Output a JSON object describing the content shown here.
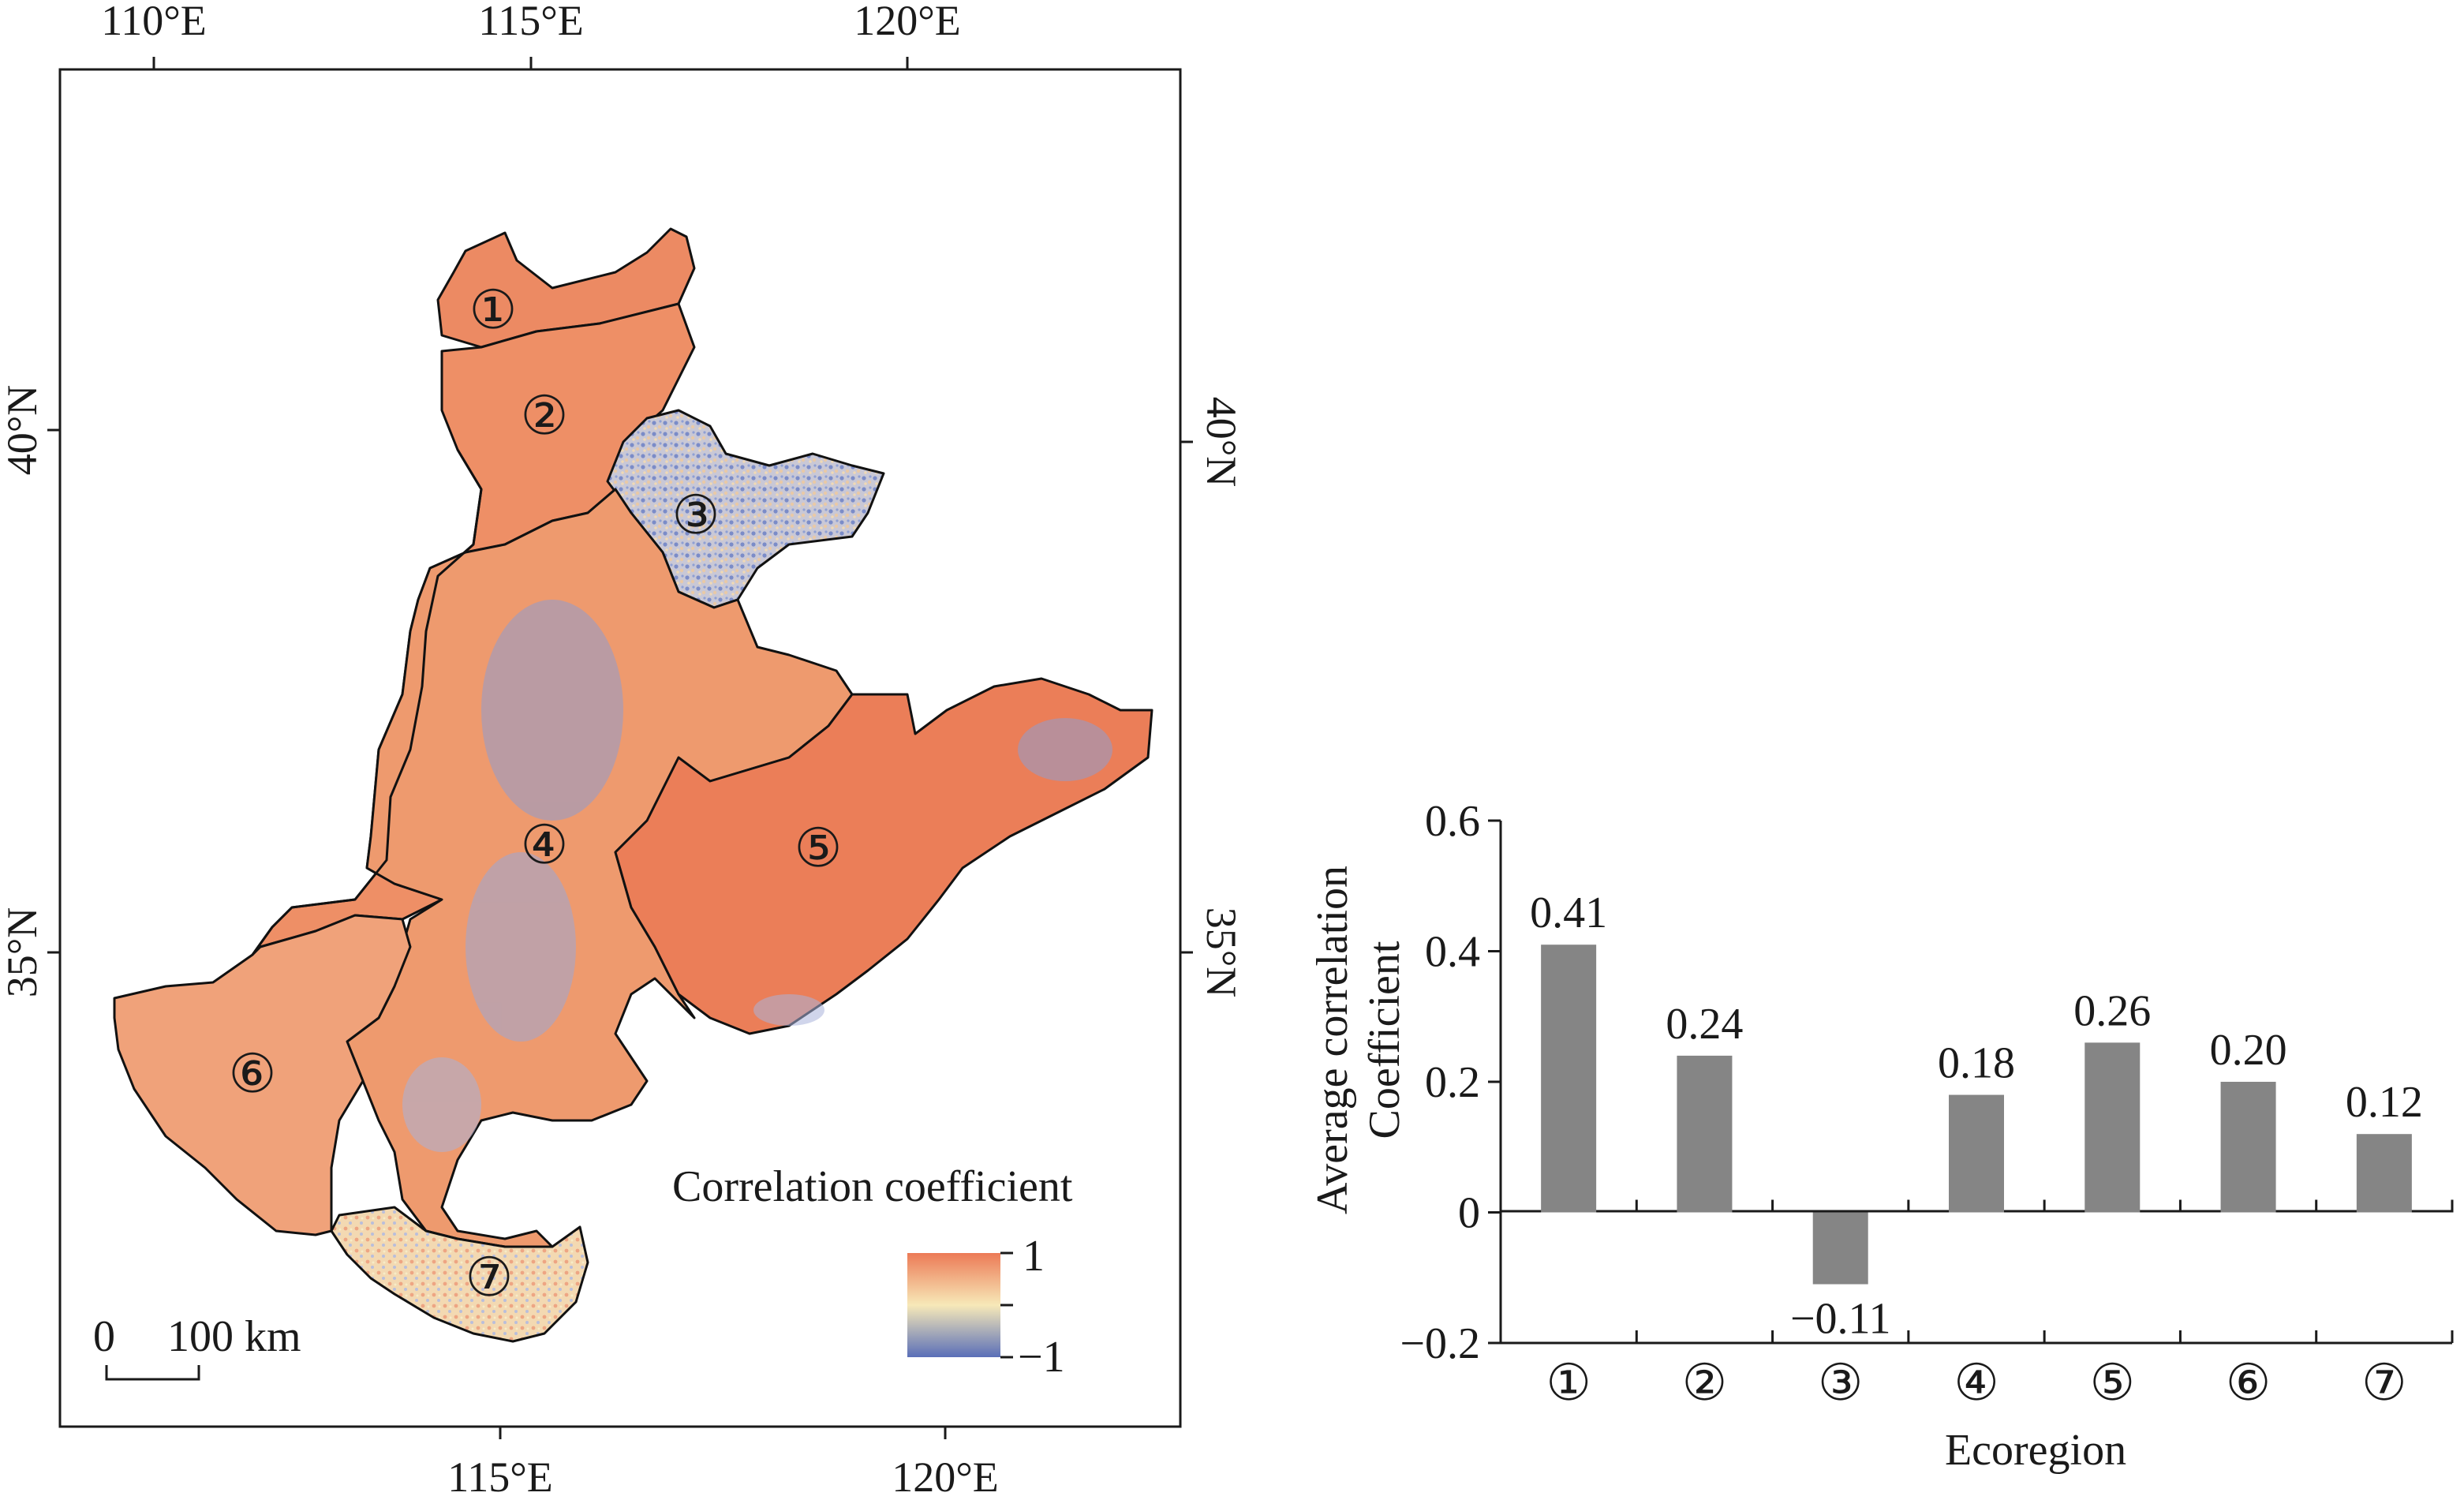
{
  "map": {
    "top_lon_labels": [
      "110°E",
      "115°E",
      "120°E"
    ],
    "bottom_lon_labels": [
      "115°E",
      "120°E"
    ],
    "left_lat_labels": [
      "40°N",
      "35°N"
    ],
    "right_lat_labels": [
      "40°N",
      "35°N"
    ],
    "region_labels": [
      "①",
      "②",
      "③",
      "④",
      "⑤",
      "⑥",
      "⑦"
    ],
    "legend": {
      "title": "Correlation coefficient",
      "max_label": "1",
      "min_label": "−1",
      "color_high": "#ec7a56",
      "color_mid": "#f7e9b8",
      "color_low": "#5a6fb8"
    },
    "scalebar": {
      "zero_label": "0",
      "distance_label": "100 km"
    }
  },
  "chart_data": {
    "type": "bar",
    "categories": [
      "①",
      "②",
      "③",
      "④",
      "⑤",
      "⑥",
      "⑦"
    ],
    "values": [
      0.41,
      0.24,
      -0.11,
      0.18,
      0.26,
      0.2,
      0.12
    ],
    "value_labels": [
      "0.41",
      "0.24",
      "−0.11",
      "0.18",
      "0.26",
      "0.20",
      "0.12"
    ],
    "xlabel": "Ecoregion",
    "ylabel": [
      "Average correlation",
      "Coefficient"
    ],
    "ylim": [
      -0.2,
      0.6
    ],
    "yticks": [
      -0.2,
      0,
      0.2,
      0.4,
      0.6
    ],
    "ytick_labels": [
      "−0.2",
      "0",
      "0.2",
      "0.4",
      "0.6"
    ],
    "bar_color": "#858585",
    "grid": false
  }
}
